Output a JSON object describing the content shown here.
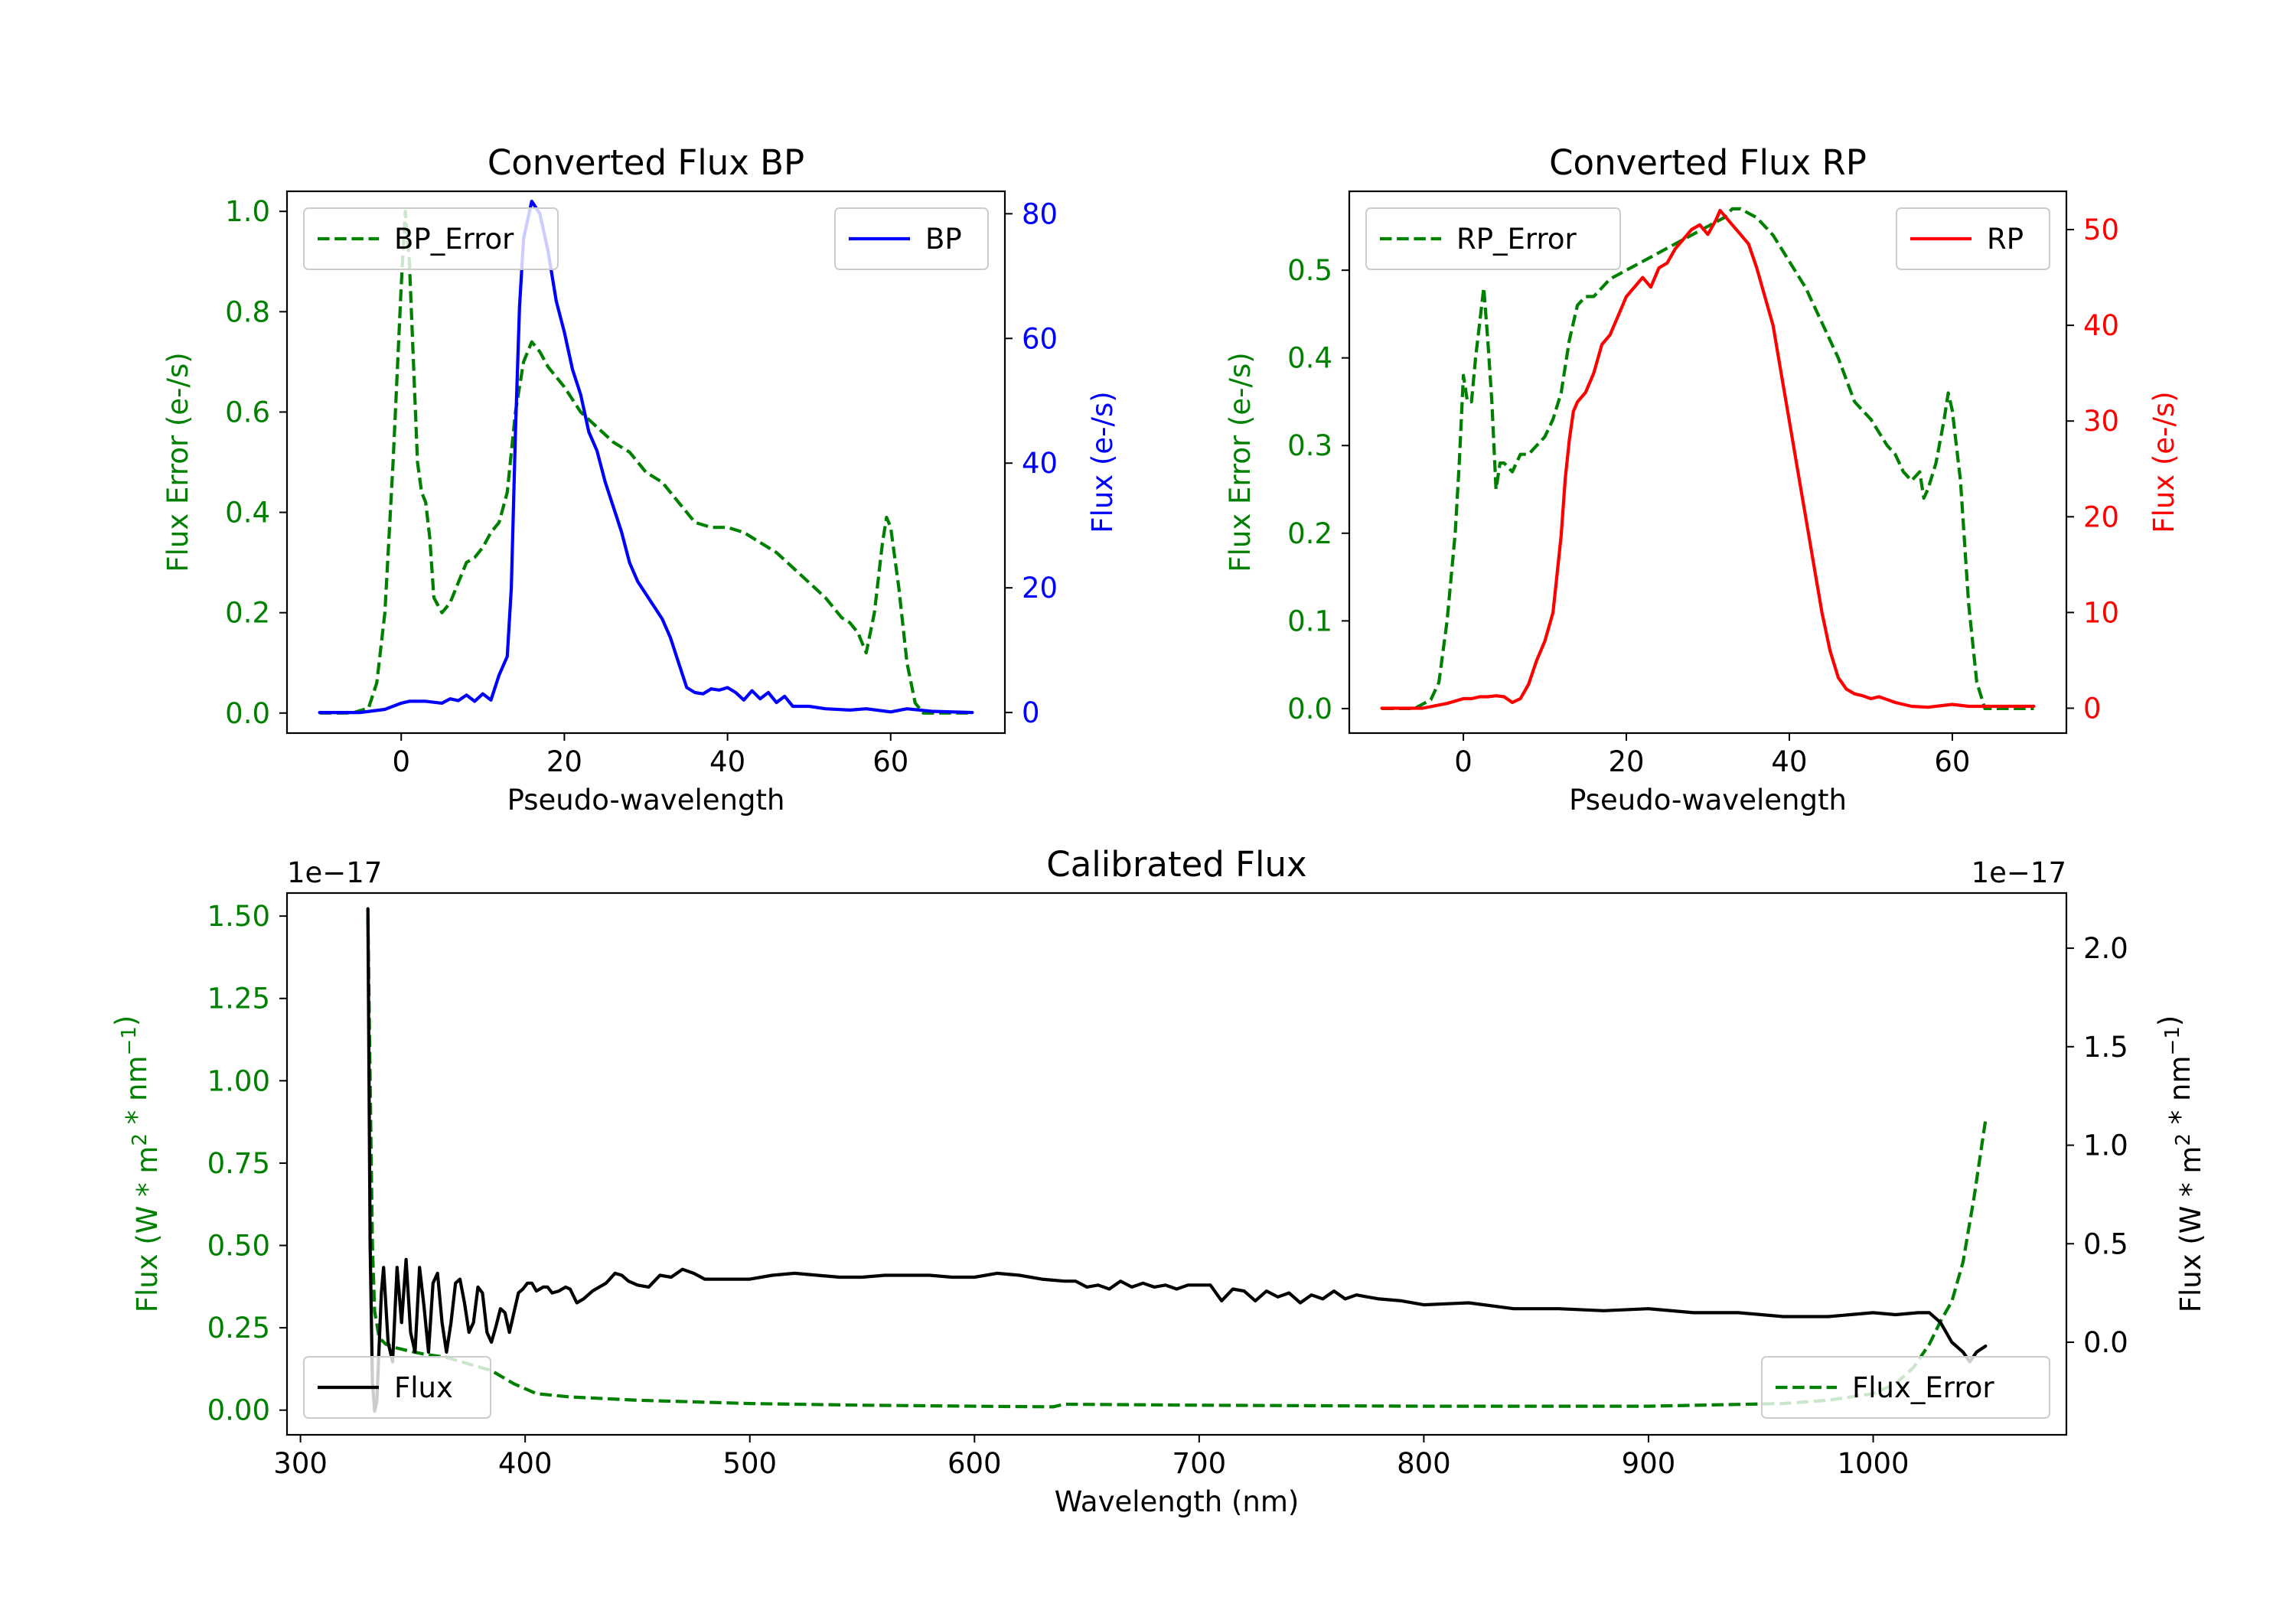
{
  "chart_data": [
    {
      "type": "line",
      "title": "Converted Flux BP",
      "xlabel": "Pseudo-wavelength",
      "ylabel_left": "Flux Error (e-/s)",
      "ylabel_right": "Flux (e-/s)",
      "xlim": [
        -14,
        74
      ],
      "ylim_left": [
        -0.04,
        1.04
      ],
      "ylim_right": [
        -3.3,
        83.6
      ],
      "xticks": [
        "0",
        "20",
        "40",
        "60"
      ],
      "xtick_values": [
        0,
        20,
        40,
        60
      ],
      "yticks_left": [
        "0.0",
        "0.2",
        "0.4",
        "0.6",
        "0.8",
        "1.0"
      ],
      "ytick_values_left": [
        0,
        0.2,
        0.4,
        0.6,
        0.8,
        1.0
      ],
      "yticks_right": [
        "0",
        "20",
        "40",
        "60",
        "80"
      ],
      "ytick_values_right": [
        0,
        20,
        40,
        60,
        80
      ],
      "series": [
        {
          "name": "BP_Error",
          "axis": "left",
          "color": "#008000",
          "dash": true,
          "x": [
            -10,
            -6,
            -4,
            -3,
            -2,
            -1,
            0,
            0.5,
            1,
            1.5,
            2,
            2.5,
            3,
            3.5,
            4,
            5,
            6,
            7,
            8,
            9,
            10,
            11,
            12,
            13,
            14,
            15,
            16,
            17,
            18,
            19,
            20,
            22,
            24,
            26,
            28,
            30,
            32,
            34,
            36,
            38,
            40,
            42,
            44,
            46,
            48,
            50,
            52,
            54,
            55,
            56,
            57,
            58,
            59,
            59.5,
            60,
            61,
            62,
            63,
            64,
            66,
            70
          ],
          "y": [
            0.0,
            0.0,
            0.01,
            0.06,
            0.2,
            0.5,
            0.85,
            1.0,
            0.9,
            0.7,
            0.5,
            0.44,
            0.42,
            0.35,
            0.23,
            0.2,
            0.22,
            0.26,
            0.3,
            0.31,
            0.33,
            0.36,
            0.38,
            0.44,
            0.6,
            0.7,
            0.74,
            0.72,
            0.69,
            0.67,
            0.65,
            0.6,
            0.57,
            0.54,
            0.52,
            0.48,
            0.46,
            0.42,
            0.38,
            0.37,
            0.37,
            0.36,
            0.34,
            0.32,
            0.29,
            0.26,
            0.23,
            0.19,
            0.18,
            0.16,
            0.12,
            0.2,
            0.34,
            0.39,
            0.37,
            0.25,
            0.1,
            0.02,
            0.0,
            0.0,
            0.0
          ]
        },
        {
          "name": "BP",
          "axis": "right",
          "color": "#0000ff",
          "dash": false,
          "x": [
            -10,
            -5,
            -2,
            0,
            1,
            3,
            5,
            6,
            7,
            8,
            9,
            10,
            11,
            12,
            13,
            13.5,
            14,
            14.5,
            15,
            15.5,
            16,
            17,
            18,
            19,
            20,
            21,
            22,
            23,
            24,
            25,
            26,
            27,
            28,
            29,
            30,
            31,
            32,
            33,
            34,
            35,
            36,
            37,
            38,
            39,
            40,
            41,
            42,
            43,
            44,
            45,
            46,
            47,
            48,
            50,
            52,
            55,
            57,
            60,
            62,
            65,
            70
          ],
          "y": [
            0,
            0,
            0.5,
            1.5,
            1.8,
            1.8,
            1.5,
            2.2,
            1.9,
            2.8,
            1.8,
            3,
            2,
            6,
            9,
            20,
            45,
            65,
            76,
            79,
            82,
            80,
            74,
            66,
            61,
            55,
            51,
            45,
            42,
            37,
            33,
            29,
            24,
            21,
            19,
            17,
            15,
            12,
            8,
            4,
            3.2,
            3,
            3.8,
            3.6,
            4,
            3.2,
            2,
            3.5,
            2.2,
            3.2,
            1.6,
            2.6,
            1,
            1,
            0.6,
            0.4,
            0.6,
            0.1,
            0.6,
            0.2,
            0
          ]
        }
      ],
      "legend": [
        {
          "label": "BP_Error",
          "location": "upper left"
        },
        {
          "label": "BP",
          "location": "upper right"
        }
      ]
    },
    {
      "type": "line",
      "title": "Converted Flux RP",
      "xlabel": "Pseudo-wavelength",
      "ylabel_left": "Flux Error (e-/s)",
      "ylabel_right": "Flux (e-/s)",
      "xlim": [
        -14,
        74
      ],
      "ylim_left": [
        -0.028,
        0.59
      ],
      "ylim_right": [
        -2.6,
        54.0
      ],
      "xticks": [
        "0",
        "20",
        "40",
        "60"
      ],
      "xtick_values": [
        0,
        20,
        40,
        60
      ],
      "yticks_left": [
        "0.0",
        "0.1",
        "0.2",
        "0.3",
        "0.4",
        "0.5"
      ],
      "ytick_values_left": [
        0,
        0.1,
        0.2,
        0.3,
        0.4,
        0.5
      ],
      "yticks_right": [
        "0",
        "10",
        "20",
        "30",
        "40",
        "50"
      ],
      "ytick_values_right": [
        0,
        10,
        20,
        30,
        40,
        50
      ],
      "series": [
        {
          "name": "RP_Error",
          "axis": "left",
          "color": "#008000",
          "dash": true,
          "x": [
            -10,
            -6,
            -4,
            -3,
            -2,
            -1,
            -0.5,
            0,
            0.5,
            1,
            1.5,
            2,
            2.5,
            3,
            3.5,
            4,
            4.5,
            5,
            6,
            7,
            8,
            9,
            10,
            11,
            12,
            13,
            14,
            15,
            16,
            17,
            18,
            20,
            22,
            24,
            26,
            28,
            30,
            32,
            33,
            34,
            36,
            38,
            40,
            42,
            44,
            46,
            48,
            50,
            52,
            53,
            54,
            55,
            56,
            56.5,
            57,
            58,
            59,
            59.5,
            60,
            61,
            62,
            63,
            64,
            66,
            70
          ],
          "y": [
            0.0,
            0.0,
            0.01,
            0.03,
            0.1,
            0.2,
            0.28,
            0.38,
            0.35,
            0.35,
            0.4,
            0.44,
            0.48,
            0.42,
            0.35,
            0.25,
            0.28,
            0.28,
            0.27,
            0.29,
            0.29,
            0.3,
            0.31,
            0.33,
            0.36,
            0.42,
            0.46,
            0.47,
            0.47,
            0.48,
            0.49,
            0.5,
            0.51,
            0.52,
            0.53,
            0.54,
            0.55,
            0.56,
            0.57,
            0.57,
            0.56,
            0.54,
            0.51,
            0.48,
            0.44,
            0.4,
            0.35,
            0.33,
            0.3,
            0.29,
            0.27,
            0.26,
            0.27,
            0.24,
            0.25,
            0.28,
            0.33,
            0.36,
            0.34,
            0.26,
            0.12,
            0.03,
            0.0,
            0.0,
            0.0
          ]
        },
        {
          "name": "RP",
          "axis": "right",
          "color": "#ff0000",
          "dash": false,
          "x": [
            -10,
            -5,
            -2,
            0,
            1,
            2,
            3,
            4,
            5,
            6,
            7,
            8,
            9,
            10,
            11,
            12,
            12.5,
            13,
            13.5,
            14,
            15,
            16,
            17,
            18,
            19,
            20,
            21,
            22,
            23,
            24,
            25,
            26,
            27,
            28,
            29,
            30,
            31,
            31.5,
            32,
            33,
            34,
            35,
            36,
            37,
            38,
            39,
            40,
            41,
            42,
            43,
            44,
            45,
            46,
            47,
            48,
            49,
            50,
            51,
            52,
            53,
            54,
            55,
            57,
            60,
            62,
            65,
            70
          ],
          "y": [
            0,
            0,
            0.5,
            1,
            1,
            1.2,
            1.2,
            1.3,
            1.2,
            0.6,
            1,
            2.5,
            5,
            7,
            10,
            18,
            24,
            28,
            31,
            32,
            33,
            35,
            38,
            39,
            41,
            43,
            44,
            45,
            44,
            46,
            46.5,
            48,
            49,
            50,
            50.5,
            49.5,
            51,
            52,
            51.5,
            50.5,
            49.5,
            48.5,
            46,
            43,
            40,
            35,
            30,
            25,
            20,
            15,
            10,
            6,
            3.2,
            2,
            1.5,
            1.3,
            1,
            1.2,
            0.9,
            0.6,
            0.4,
            0.2,
            0.1,
            0.4,
            0.2,
            0.2,
            0.2
          ]
        }
      ],
      "legend": [
        {
          "label": "RP_Error",
          "location": "upper left"
        },
        {
          "label": "RP",
          "location": "upper right"
        }
      ]
    },
    {
      "type": "line",
      "title": "Calibrated Flux",
      "xlabel": "Wavelength (nm)",
      "ylabel_left": "Flux (W * m",
      "ylabel_right": "Flux (W * m",
      "ylabel_sup": "2",
      "ylabel_mid": " * nm",
      "ylabel_sup2": "−1",
      "ylabel_end": ")",
      "offset_left": "1e−17",
      "offset_right": "1e−17",
      "xlim": [
        294,
        1086
      ],
      "ylim_left": [
        -0.075,
        1.57
      ],
      "ylim_right": [
        -0.47,
        2.28
      ],
      "xticks": [
        "300",
        "400",
        "500",
        "600",
        "700",
        "800",
        "900",
        "1000"
      ],
      "xtick_values": [
        300,
        400,
        500,
        600,
        700,
        800,
        900,
        1000
      ],
      "yticks_left": [
        "0.00",
        "0.25",
        "0.50",
        "0.75",
        "1.00",
        "1.25",
        "1.50"
      ],
      "ytick_values_left": [
        0,
        0.25,
        0.5,
        0.75,
        1.0,
        1.25,
        1.5
      ],
      "yticks_right": [
        "0.0",
        "0.5",
        "1.0",
        "1.5",
        "2.0"
      ],
      "ytick_values_right": [
        0,
        0.5,
        1.0,
        1.5,
        2.0
      ],
      "series": [
        {
          "name": "Flux_Error",
          "axis": "left",
          "color": "#008000",
          "dash": true,
          "x": [
            330,
            331,
            332,
            333,
            335,
            338,
            342,
            348,
            355,
            365,
            375,
            385,
            395,
            405,
            420,
            450,
            500,
            550,
            600,
            635,
            640,
            700,
            800,
            900,
            960,
            980,
            1000,
            1010,
            1018,
            1025,
            1030,
            1035,
            1040,
            1045,
            1050
          ],
          "y": [
            1.5,
            1.0,
            0.5,
            0.3,
            0.22,
            0.2,
            0.19,
            0.18,
            0.17,
            0.16,
            0.14,
            0.12,
            0.08,
            0.05,
            0.04,
            0.03,
            0.02,
            0.015,
            0.012,
            0.01,
            0.018,
            0.015,
            0.012,
            0.012,
            0.02,
            0.03,
            0.05,
            0.08,
            0.13,
            0.2,
            0.27,
            0.33,
            0.45,
            0.65,
            0.88
          ]
        },
        {
          "name": "Flux",
          "axis": "right",
          "color": "#000000",
          "dash": false,
          "x": [
            330,
            331,
            332,
            333,
            334,
            336,
            337,
            339,
            341,
            343,
            345,
            347,
            349,
            351,
            353,
            355,
            357,
            359,
            361,
            363,
            365,
            367,
            369,
            371,
            373,
            375,
            377,
            379,
            381,
            383,
            385,
            387,
            389,
            391,
            393,
            395,
            397,
            399,
            401,
            403,
            405,
            408,
            410,
            412,
            415,
            418,
            420,
            423,
            426,
            430,
            433,
            436,
            440,
            443,
            446,
            450,
            455,
            460,
            465,
            470,
            475,
            480,
            490,
            500,
            510,
            520,
            530,
            540,
            550,
            560,
            570,
            580,
            590,
            600,
            610,
            620,
            630,
            640,
            645,
            650,
            655,
            660,
            665,
            670,
            675,
            680,
            685,
            690,
            695,
            700,
            705,
            710,
            715,
            720,
            725,
            730,
            735,
            740,
            745,
            750,
            755,
            760,
            765,
            770,
            780,
            790,
            800,
            820,
            840,
            860,
            880,
            900,
            920,
            940,
            960,
            980,
            1000,
            1010,
            1020,
            1025,
            1030,
            1035,
            1040,
            1043,
            1046,
            1050
          ],
          "y": [
            2.2,
            0.5,
            -0.2,
            -0.35,
            -0.3,
            0.25,
            0.38,
            0.0,
            -0.1,
            0.38,
            0.1,
            0.42,
            0.05,
            -0.05,
            0.38,
            0.18,
            -0.05,
            0.3,
            0.35,
            0.1,
            -0.05,
            0.1,
            0.3,
            0.32,
            0.2,
            0.05,
            0.1,
            0.28,
            0.25,
            0.05,
            0.0,
            0.08,
            0.17,
            0.15,
            0.05,
            0.15,
            0.25,
            0.27,
            0.3,
            0.3,
            0.26,
            0.28,
            0.28,
            0.25,
            0.26,
            0.28,
            0.27,
            0.2,
            0.22,
            0.26,
            0.28,
            0.3,
            0.35,
            0.34,
            0.31,
            0.29,
            0.28,
            0.34,
            0.33,
            0.37,
            0.35,
            0.32,
            0.32,
            0.32,
            0.34,
            0.35,
            0.34,
            0.33,
            0.33,
            0.34,
            0.34,
            0.34,
            0.33,
            0.33,
            0.35,
            0.34,
            0.32,
            0.31,
            0.31,
            0.28,
            0.29,
            0.27,
            0.31,
            0.28,
            0.3,
            0.28,
            0.29,
            0.27,
            0.29,
            0.29,
            0.29,
            0.21,
            0.27,
            0.26,
            0.21,
            0.26,
            0.23,
            0.25,
            0.2,
            0.24,
            0.22,
            0.26,
            0.22,
            0.24,
            0.22,
            0.21,
            0.19,
            0.2,
            0.17,
            0.17,
            0.16,
            0.17,
            0.15,
            0.15,
            0.13,
            0.13,
            0.15,
            0.14,
            0.15,
            0.15,
            0.1,
            0.0,
            -0.05,
            -0.1,
            -0.05,
            -0.02
          ]
        }
      ],
      "legend": [
        {
          "label": "Flux",
          "location": "lower left"
        },
        {
          "label": "Flux_Error",
          "location": "lower right"
        }
      ]
    }
  ]
}
